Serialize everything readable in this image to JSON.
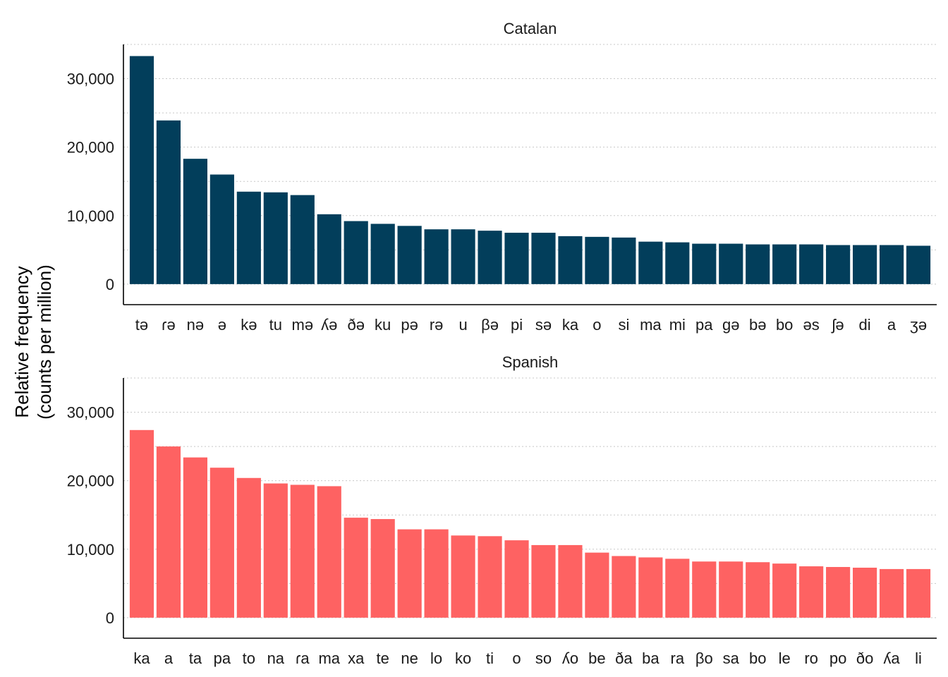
{
  "chart_data": {
    "type": "bar",
    "ylabel_line1": "Relative frequency",
    "ylabel_line2": "(counts per million)",
    "ylim": [
      -3000,
      35000
    ],
    "yticks": [
      0,
      10000,
      20000,
      30000
    ],
    "ytick_labels": [
      "0",
      "10,000",
      "20,000",
      "30,000"
    ],
    "grid": "horizontal dotted",
    "facets": [
      {
        "title": "Catalan",
        "color": "#023e5b",
        "categories": [
          "tə",
          "ɾə",
          "nə",
          "ə",
          "kə",
          "tu",
          "mə",
          "ʎə",
          "ðə",
          "ku",
          "pə",
          "rə",
          "u",
          "βə",
          "pi",
          "sə",
          "ka",
          "o",
          "si",
          "ma",
          "mi",
          "pa",
          "gə",
          "bə",
          "bo",
          "əs",
          "ʃə",
          "di",
          "a",
          "ʒə"
        ],
        "values": [
          33300,
          23900,
          18300,
          16000,
          13500,
          13400,
          13000,
          10200,
          9200,
          8800,
          8500,
          8000,
          8000,
          7800,
          7500,
          7500,
          7000,
          6900,
          6800,
          6200,
          6100,
          5900,
          5900,
          5800,
          5800,
          5800,
          5700,
          5700,
          5700,
          5600
        ]
      },
      {
        "title": "Spanish",
        "color": "#fe6262",
        "categories": [
          "ka",
          "a",
          "ta",
          "pa",
          "to",
          "na",
          "ɾa",
          "ma",
          "xa",
          "te",
          "ne",
          "lo",
          "ko",
          "ti",
          "o",
          "so",
          "ʎo",
          "be",
          "ða",
          "ba",
          "ra",
          "βo",
          "sa",
          "bo",
          "le",
          "ro",
          "po",
          "ðo",
          "ʎa",
          "li"
        ],
        "values": [
          27400,
          25000,
          23400,
          21900,
          20400,
          19600,
          19400,
          19200,
          14600,
          14400,
          12900,
          12900,
          12000,
          11900,
          11300,
          10600,
          10600,
          9500,
          9000,
          8800,
          8600,
          8200,
          8200,
          8100,
          7900,
          7500,
          7400,
          7300,
          7100,
          7100
        ]
      }
    ]
  }
}
